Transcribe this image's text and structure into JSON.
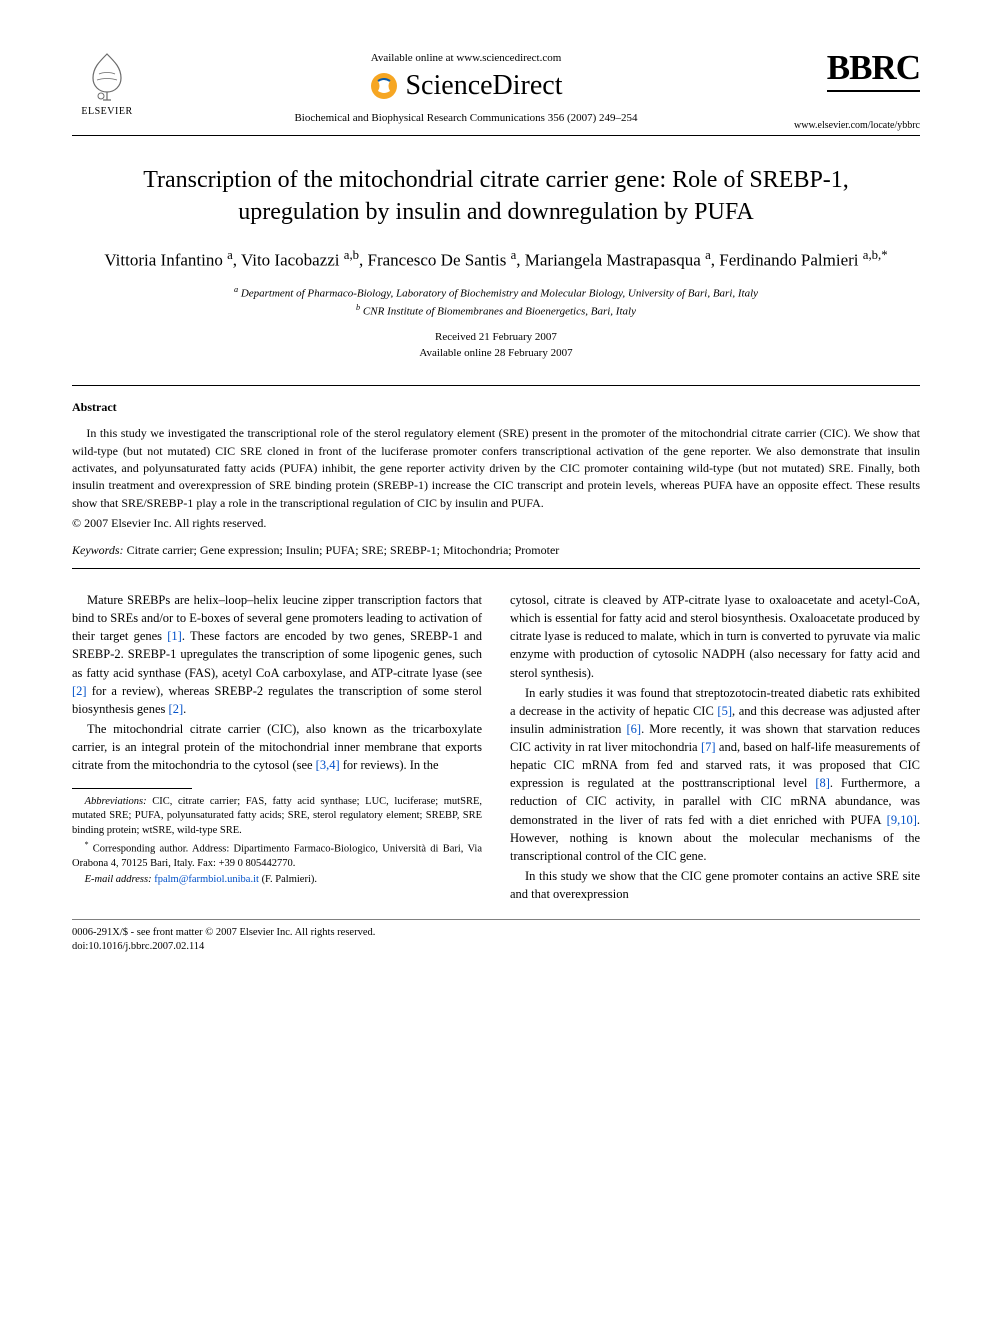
{
  "header": {
    "publisher_name": "ELSEVIER",
    "available_online": "Available online at www.sciencedirect.com",
    "sciencedirect": "ScienceDirect",
    "journal_citation": "Biochemical and Biophysical Research Communications 356 (2007) 249–254",
    "journal_abbrev": "BBRC",
    "journal_url": "www.elsevier.com/locate/ybbrc"
  },
  "article": {
    "title": "Transcription of the mitochondrial citrate carrier gene: Role of SREBP-1, upregulation by insulin and downregulation by PUFA",
    "authors_html": "Vittoria Infantino <sup>a</sup>, Vito Iacobazzi <sup>a,b</sup>, Francesco De Santis <sup>a</sup>, Mariangela Mastrapasqua <sup>a</sup>, Ferdinando Palmieri <sup>a,b,*</sup>",
    "affiliations": {
      "a": "Department of Pharmaco-Biology, Laboratory of Biochemistry and Molecular Biology, University of Bari, Bari, Italy",
      "b": "CNR Institute of Biomembranes and Bioenergetics, Bari, Italy"
    },
    "received": "Received 21 February 2007",
    "available": "Available online 28 February 2007"
  },
  "abstract": {
    "heading": "Abstract",
    "body": "In this study we investigated the transcriptional role of the sterol regulatory element (SRE) present in the promoter of the mitochondrial citrate carrier (CIC). We show that wild-type (but not mutated) CIC SRE cloned in front of the luciferase promoter confers transcriptional activation of the gene reporter. We also demonstrate that insulin activates, and polyunsaturated fatty acids (PUFA) inhibit, the gene reporter activity driven by the CIC promoter containing wild-type (but not mutated) SRE. Finally, both insulin treatment and overexpression of SRE binding protein (SREBP-1) increase the CIC transcript and protein levels, whereas PUFA have an opposite effect. These results show that SRE/SREBP-1 play a role in the transcriptional regulation of CIC by insulin and PUFA.",
    "copyright": "© 2007 Elsevier Inc. All rights reserved.",
    "keywords_label": "Keywords:",
    "keywords": "Citrate carrier; Gene expression; Insulin; PUFA; SRE; SREBP-1; Mitochondria; Promoter"
  },
  "body": {
    "left": {
      "p1_pre": "Mature SREBPs are helix–loop–helix leucine zipper transcription factors that bind to SREs and/or to E-boxes of several gene promoters leading to activation of their target genes ",
      "p1_cite1": "[1]",
      "p1_mid": ". These factors are encoded by two genes, SREBP-1 and SREBP-2. SREBP-1 upregulates the transcription of some lipogenic genes, such as fatty acid synthase (FAS), acetyl CoA carboxylase, and ATP-citrate lyase (see ",
      "p1_cite2": "[2]",
      "p1_mid2": " for a review), whereas SREBP-2 regulates the transcription of some sterol biosynthesis genes ",
      "p1_cite3": "[2]",
      "p1_end": ".",
      "p2_pre": "The mitochondrial citrate carrier (CIC), also known as the tricarboxylate carrier, is an integral protein of the mitochondrial inner membrane that exports citrate from the mitochondria to the cytosol (see ",
      "p2_cite": "[3,4]",
      "p2_end": " for reviews). In the"
    },
    "right": {
      "p1": "cytosol, citrate is cleaved by ATP-citrate lyase to oxaloacetate and acetyl-CoA, which is essential for fatty acid and sterol biosynthesis. Oxaloacetate produced by citrate lyase is reduced to malate, which in turn is converted to pyruvate via malic enzyme with production of cytosolic NADPH (also necessary for fatty acid and sterol synthesis).",
      "p2_pre": "In early studies it was found that streptozotocin-treated diabetic rats exhibited a decrease in the activity of hepatic CIC ",
      "p2_c1": "[5]",
      "p2_m1": ", and this decrease was adjusted after insulin administration ",
      "p2_c2": "[6]",
      "p2_m2": ". More recently, it was shown that starvation reduces CIC activity in rat liver mitochondria ",
      "p2_c3": "[7]",
      "p2_m3": " and, based on half-life measurements of hepatic CIC mRNA from fed and starved rats, it was proposed that CIC expression is regulated at the posttranscriptional level ",
      "p2_c4": "[8]",
      "p2_m4": ". Furthermore, a reduction of CIC activity, in parallel with CIC mRNA abundance, was demonstrated in the liver of rats fed with a diet enriched with PUFA ",
      "p2_c5": "[9,10]",
      "p2_end": ". However, nothing is known about the molecular mechanisms of the transcriptional control of the CIC gene.",
      "p3": "In this study we show that the CIC gene promoter contains an active SRE site and that overexpression"
    }
  },
  "footnotes": {
    "abbrev_label": "Abbreviations:",
    "abbrev": " CIC, citrate carrier; FAS, fatty acid synthase; LUC, luciferase; mutSRE, mutated SRE; PUFA, polyunsaturated fatty acids; SRE, sterol regulatory element; SREBP, SRE binding protein; wtSRE, wild-type SRE.",
    "corr": "Corresponding author. Address: Dipartimento Farmaco-Biologico, Università di Bari, Via Orabona 4, 70125 Bari, Italy. Fax: +39 0 805442770.",
    "email_label": "E-mail address:",
    "email": "fpalm@farmbiol.uniba.it",
    "email_who": " (F. Palmieri)."
  },
  "footer": {
    "line1": "0006-291X/$ - see front matter © 2007 Elsevier Inc. All rights reserved.",
    "line2": "doi:10.1016/j.bbrc.2007.02.114"
  },
  "colors": {
    "text": "#000000",
    "link": "#0050c8",
    "rule_gray": "#808080",
    "sd_orange": "#f6a623",
    "sd_blue": "#0a5aa8",
    "elsevier_gray": "#6a6a6a"
  }
}
